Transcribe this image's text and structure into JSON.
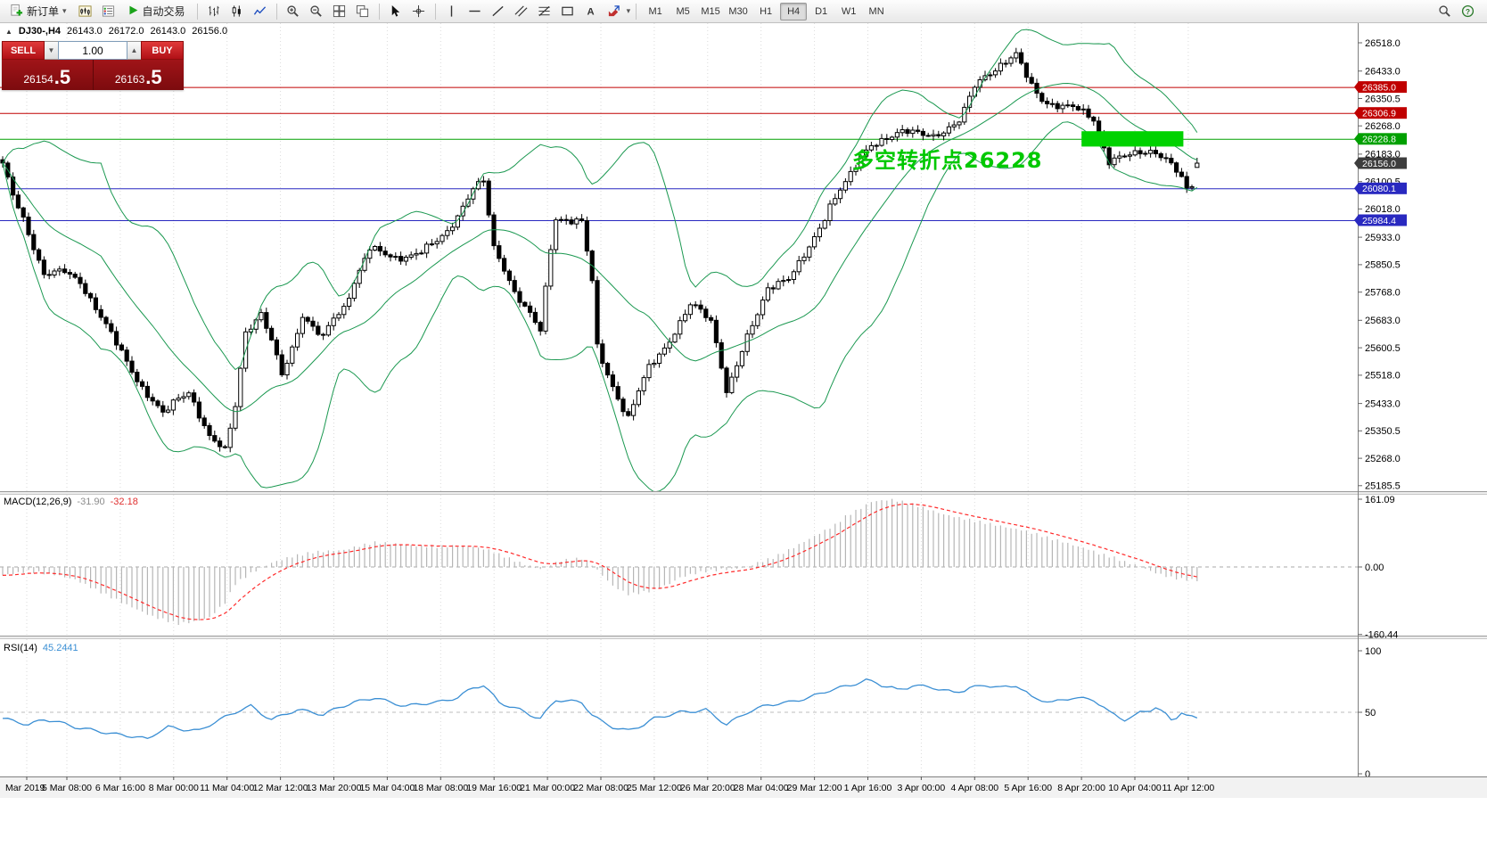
{
  "toolbar": {
    "new_order": "新订单",
    "autotrading": "自动交易",
    "timeframes": [
      "M1",
      "M5",
      "M15",
      "M30",
      "H1",
      "H4",
      "D1",
      "W1",
      "MN"
    ],
    "active_timeframe": "H4"
  },
  "symbol_header": {
    "symbol": "DJ30-,H4",
    "open": "26143.0",
    "high": "26172.0",
    "low": "26143.0",
    "close": "26156.0"
  },
  "trade_panel": {
    "sell_label": "SELL",
    "buy_label": "BUY",
    "volume": "1.00",
    "sell_price_main": "26154",
    "sell_price_big": ".5",
    "buy_price_main": "26163",
    "buy_price_big": ".5"
  },
  "annotation": {
    "text": "多空转折点26228",
    "color": "#00c800"
  },
  "indicators": {
    "macd_label": "MACD(12,26,9)",
    "macd_value": "-31.90",
    "macd_signal": "-32.18",
    "rsi_label": "RSI(14)",
    "rsi_value": "45.2441"
  },
  "chart_data": [
    {
      "type": "candlestick",
      "title": "DJ30-,H4",
      "x_ticks": [
        "Mar 2019",
        "5 Mar 08:00",
        "6 Mar 16:00",
        "8 Mar 00:00",
        "11 Mar 04:00",
        "12 Mar 12:00",
        "13 Mar 20:00",
        "15 Mar 04:00",
        "18 Mar 08:00",
        "19 Mar 16:00",
        "21 Mar 00:00",
        "22 Mar 08:00",
        "25 Mar 12:00",
        "26 Mar 20:00",
        "28 Mar 04:00",
        "29 Mar 12:00",
        "1 Apr 16:00",
        "3 Apr 00:00",
        "4 Apr 08:00",
        "5 Apr 16:00",
        "8 Apr 20:00",
        "10 Apr 04:00",
        "11 Apr 12:00"
      ],
      "y_ticks": [
        26518.0,
        26433.0,
        26350.5,
        26268.0,
        26183.0,
        26100.5,
        26018.0,
        25933.0,
        25850.5,
        25768.0,
        25683.0,
        25600.5,
        25518.0,
        25433.0,
        25350.5,
        25268.0,
        25185.5
      ],
      "view_price_top": 26577,
      "view_price_bottom": 25169,
      "candle_count": 232,
      "last_candle": {
        "open": 26143.0,
        "high": 26172.0,
        "low": 26143.0,
        "close": 26156.0
      },
      "close_waypoints": [
        [
          0,
          26150
        ],
        [
          2,
          26060
        ],
        [
          4,
          25990
        ],
        [
          8,
          25820
        ],
        [
          12,
          25830
        ],
        [
          15,
          25800
        ],
        [
          18,
          25720
        ],
        [
          21,
          25640
        ],
        [
          24,
          25560
        ],
        [
          27,
          25480
        ],
        [
          31,
          25400
        ],
        [
          34,
          25450
        ],
        [
          36,
          25470
        ],
        [
          38,
          25400
        ],
        [
          40,
          25330
        ],
        [
          43,
          25290
        ],
        [
          45,
          25430
        ],
        [
          47,
          25650
        ],
        [
          50,
          25700
        ],
        [
          52,
          25620
        ],
        [
          54,
          25520
        ],
        [
          56,
          25600
        ],
        [
          58,
          25700
        ],
        [
          60,
          25660
        ],
        [
          62,
          25630
        ],
        [
          64,
          25690
        ],
        [
          66,
          25720
        ],
        [
          68,
          25800
        ],
        [
          71,
          25900
        ],
        [
          74,
          25880
        ],
        [
          76,
          25870
        ],
        [
          79,
          25880
        ],
        [
          81,
          25890
        ],
        [
          84,
          25920
        ],
        [
          86,
          25950
        ],
        [
          88,
          26000
        ],
        [
          91,
          26080
        ],
        [
          93,
          26100
        ],
        [
          95,
          25900
        ],
        [
          97,
          25840
        ],
        [
          99,
          25770
        ],
        [
          102,
          25700
        ],
        [
          104,
          25650
        ],
        [
          106,
          25900
        ],
        [
          107,
          25990
        ],
        [
          110,
          25985
        ],
        [
          112,
          25980
        ],
        [
          114,
          25800
        ],
        [
          115,
          25600
        ],
        [
          117,
          25520
        ],
        [
          119,
          25450
        ],
        [
          121,
          25390
        ],
        [
          123,
          25470
        ],
        [
          125,
          25540
        ],
        [
          128,
          25600
        ],
        [
          130,
          25650
        ],
        [
          133,
          25730
        ],
        [
          135,
          25710
        ],
        [
          137,
          25680
        ],
        [
          139,
          25550
        ],
        [
          140,
          25470
        ],
        [
          142,
          25550
        ],
        [
          144,
          25630
        ],
        [
          146,
          25700
        ],
        [
          148,
          25780
        ],
        [
          150,
          25800
        ],
        [
          152,
          25810
        ],
        [
          154,
          25850
        ],
        [
          156,
          25900
        ],
        [
          158,
          25960
        ],
        [
          160,
          26030
        ],
        [
          162,
          26080
        ],
        [
          164,
          26120
        ],
        [
          166,
          26170
        ],
        [
          168,
          26210
        ],
        [
          171,
          26235
        ],
        [
          174,
          26250
        ],
        [
          177,
          26245
        ],
        [
          180,
          26240
        ],
        [
          183,
          26260
        ],
        [
          185,
          26280
        ],
        [
          187,
          26350
        ],
        [
          188,
          26390
        ],
        [
          190,
          26420
        ],
        [
          192,
          26440
        ],
        [
          194,
          26460
        ],
        [
          196,
          26480
        ],
        [
          197,
          26450
        ],
        [
          199,
          26390
        ],
        [
          201,
          26350
        ],
        [
          203,
          26330
        ],
        [
          205,
          26325
        ],
        [
          208,
          26320
        ],
        [
          211,
          26290
        ],
        [
          213,
          26200
        ],
        [
          214,
          26160
        ],
        [
          216,
          26170
        ],
        [
          218,
          26180
        ],
        [
          220,
          26190
        ],
        [
          222,
          26195
        ],
        [
          224,
          26180
        ],
        [
          226,
          26150
        ],
        [
          228,
          26110
        ],
        [
          229,
          26075
        ],
        [
          230,
          26090
        ],
        [
          231,
          26156
        ]
      ],
      "bollinger": {
        "period": 20,
        "deviation": 2.2,
        "color": "#1a9850"
      },
      "hlines": [
        {
          "price": 26385.0,
          "label": "26385.0",
          "color": "#c00000"
        },
        {
          "price": 26306.9,
          "label": "26306.9",
          "color": "#c00000"
        },
        {
          "price": 26228.8,
          "label": "26228.8",
          "color": "#00a000"
        },
        {
          "price": 26156.0,
          "label": "26156.0",
          "color": "#3d3d3d",
          "tag_only": true
        },
        {
          "price": 26080.1,
          "label": "26080.1",
          "color": "#2929c0"
        },
        {
          "price": 25984.4,
          "label": "25984.4",
          "color": "#2929c0"
        }
      ],
      "highlight_rect": {
        "from_index": 209,
        "to_index": 228,
        "price_top": 26252,
        "price_bottom": 26206,
        "color": "#00d200"
      }
    },
    {
      "type": "macd",
      "label": "MACD(12,26,9)",
      "current_macd": -31.9,
      "current_signal": -32.18,
      "y_ticks": [
        "161.09",
        "0.00",
        "-160.44"
      ],
      "y_max": 161.09,
      "y_min": -160.44,
      "histogram_color": "#b6b6b6",
      "signal_color": "#ff2a2a",
      "waypoints": [
        [
          0,
          -20
        ],
        [
          5,
          -10
        ],
        [
          10,
          -18
        ],
        [
          14,
          -30
        ],
        [
          19,
          -60
        ],
        [
          24,
          -90
        ],
        [
          29,
          -118
        ],
        [
          34,
          -135
        ],
        [
          37,
          -130
        ],
        [
          40,
          -120
        ],
        [
          43,
          -85
        ],
        [
          45,
          -40
        ],
        [
          48,
          -15
        ],
        [
          52,
          10
        ],
        [
          56,
          25
        ],
        [
          60,
          35
        ],
        [
          63,
          38
        ],
        [
          66,
          40
        ],
        [
          69,
          50
        ],
        [
          72,
          58
        ],
        [
          76,
          55
        ],
        [
          80,
          50
        ],
        [
          84,
          48
        ],
        [
          88,
          50
        ],
        [
          91,
          48
        ],
        [
          94,
          40
        ],
        [
          97,
          25
        ],
        [
          100,
          10
        ],
        [
          102,
          2
        ],
        [
          104,
          -5
        ],
        [
          106,
          5
        ],
        [
          108,
          15
        ],
        [
          110,
          18
        ],
        [
          112,
          20
        ],
        [
          114,
          5
        ],
        [
          116,
          -20
        ],
        [
          118,
          -45
        ],
        [
          121,
          -65
        ],
        [
          124,
          -60
        ],
        [
          126,
          -55
        ],
        [
          129,
          -40
        ],
        [
          131,
          -25
        ],
        [
          134,
          -15
        ],
        [
          136,
          -10
        ],
        [
          139,
          -6
        ],
        [
          141,
          -5
        ],
        [
          144,
          0
        ],
        [
          146,
          10
        ],
        [
          149,
          22
        ],
        [
          152,
          40
        ],
        [
          155,
          60
        ],
        [
          158,
          80
        ],
        [
          161,
          100
        ],
        [
          163,
          120
        ],
        [
          166,
          140
        ],
        [
          168,
          155
        ],
        [
          170,
          158
        ],
        [
          172,
          160
        ],
        [
          174,
          155
        ],
        [
          177,
          145
        ],
        [
          180,
          133
        ],
        [
          182,
          125
        ],
        [
          185,
          117
        ],
        [
          187,
          112
        ],
        [
          190,
          105
        ],
        [
          192,
          100
        ],
        [
          195,
          92
        ],
        [
          197,
          88
        ],
        [
          200,
          78
        ],
        [
          202,
          70
        ],
        [
          205,
          60
        ],
        [
          207,
          52
        ],
        [
          210,
          42
        ],
        [
          212,
          32
        ],
        [
          215,
          22
        ],
        [
          217,
          12
        ],
        [
          220,
          2
        ],
        [
          222,
          -10
        ],
        [
          224,
          -18
        ],
        [
          226,
          -25
        ],
        [
          228,
          -29
        ],
        [
          230,
          -31
        ],
        [
          231,
          -31.9
        ]
      ]
    },
    {
      "type": "rsi",
      "label": "RSI(14)",
      "current": 45.2441,
      "y_ticks": [
        "100",
        "50",
        "0"
      ],
      "levels": [
        50
      ],
      "line_color": "#3b8fd4",
      "waypoints": [
        [
          0,
          45
        ],
        [
          3,
          42
        ],
        [
          5,
          40
        ],
        [
          8,
          44
        ],
        [
          10,
          43
        ],
        [
          14,
          38
        ],
        [
          18,
          35
        ],
        [
          22,
          32
        ],
        [
          26,
          30
        ],
        [
          28,
          28
        ],
        [
          30,
          34
        ],
        [
          32,
          38
        ],
        [
          35,
          36
        ],
        [
          38,
          35
        ],
        [
          41,
          42
        ],
        [
          44,
          48
        ],
        [
          46,
          52
        ],
        [
          48,
          55
        ],
        [
          50,
          49
        ],
        [
          52,
          44
        ],
        [
          55,
          49
        ],
        [
          57,
          52
        ],
        [
          60,
          50
        ],
        [
          62,
          48
        ],
        [
          65,
          54
        ],
        [
          68,
          58
        ],
        [
          70,
          60
        ],
        [
          72,
          62
        ],
        [
          75,
          58
        ],
        [
          78,
          55
        ],
        [
          81,
          57
        ],
        [
          84,
          58
        ],
        [
          86,
          60
        ],
        [
          88,
          62
        ],
        [
          91,
          70
        ],
        [
          93,
          72
        ],
        [
          95,
          63
        ],
        [
          96,
          58
        ],
        [
          98,
          55
        ],
        [
          100,
          52
        ],
        [
          102,
          48
        ],
        [
          104,
          45
        ],
        [
          106,
          55
        ],
        [
          107,
          60
        ],
        [
          110,
          59
        ],
        [
          112,
          58
        ],
        [
          114,
          48
        ],
        [
          116,
          42
        ],
        [
          118,
          38
        ],
        [
          121,
          35
        ],
        [
          124,
          40
        ],
        [
          126,
          45
        ],
        [
          129,
          48
        ],
        [
          131,
          50
        ],
        [
          134,
          51
        ],
        [
          136,
          52
        ],
        [
          138,
          46
        ],
        [
          140,
          40
        ],
        [
          142,
          45
        ],
        [
          144,
          50
        ],
        [
          146,
          53
        ],
        [
          148,
          56
        ],
        [
          150,
          57
        ],
        [
          152,
          58
        ],
        [
          154,
          60
        ],
        [
          156,
          62
        ],
        [
          158,
          65
        ],
        [
          160,
          68
        ],
        [
          162,
          70
        ],
        [
          164,
          72
        ],
        [
          167,
          76
        ],
        [
          169,
          74
        ],
        [
          170,
          72
        ],
        [
          172,
          70
        ],
        [
          173,
          68
        ],
        [
          175,
          70
        ],
        [
          176,
          72
        ],
        [
          178,
          71
        ],
        [
          180,
          70
        ],
        [
          182,
          68
        ],
        [
          184,
          66
        ],
        [
          186,
          68
        ],
        [
          187,
          70
        ],
        [
          189,
          71
        ],
        [
          190,
          72
        ],
        [
          192,
          71
        ],
        [
          193,
          70
        ],
        [
          195,
          71
        ],
        [
          196,
          72
        ],
        [
          198,
          66
        ],
        [
          199,
          62
        ],
        [
          201,
          60
        ],
        [
          203,
          58
        ],
        [
          205,
          60
        ],
        [
          207,
          62
        ],
        [
          209,
          61
        ],
        [
          211,
          60
        ],
        [
          213,
          54
        ],
        [
          214,
          50
        ],
        [
          216,
          46
        ],
        [
          217,
          44
        ],
        [
          219,
          47
        ],
        [
          220,
          50
        ],
        [
          222,
          52
        ],
        [
          223,
          54
        ],
        [
          225,
          48
        ],
        [
          226,
          44
        ],
        [
          227,
          46
        ],
        [
          228,
          50
        ],
        [
          229,
          47
        ],
        [
          230,
          46
        ],
        [
          231,
          45.24
        ]
      ]
    }
  ]
}
